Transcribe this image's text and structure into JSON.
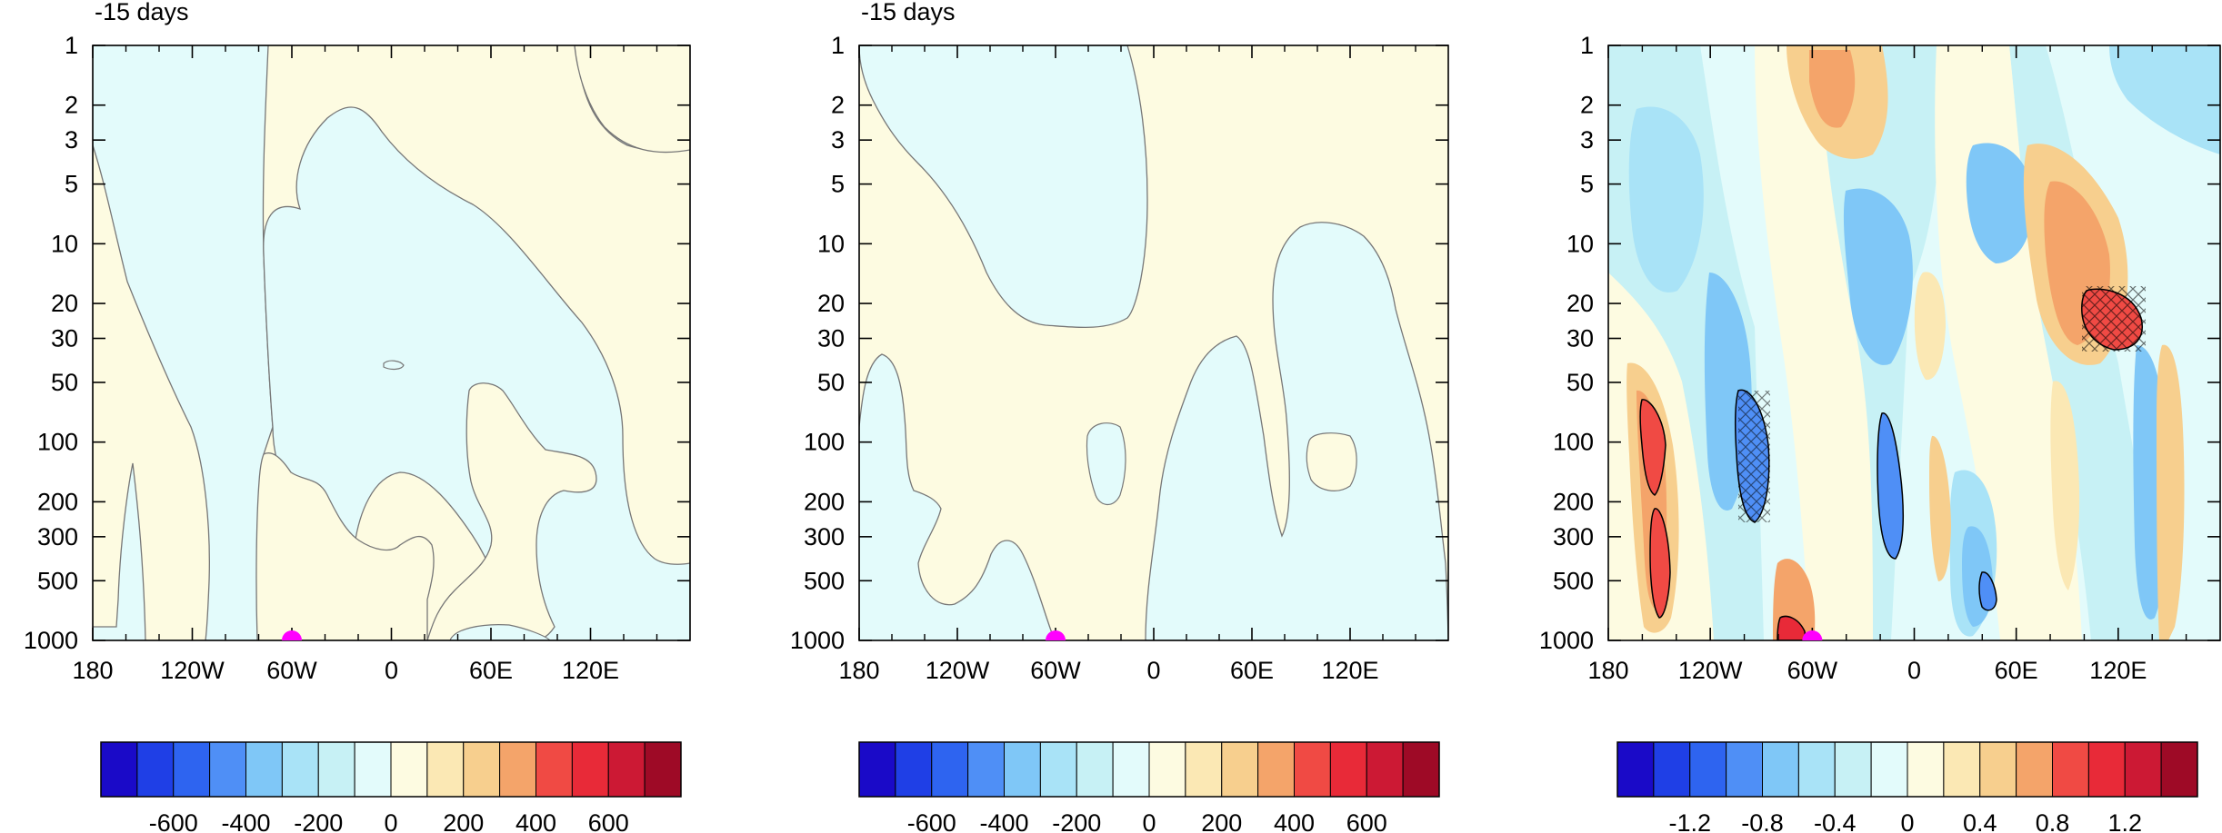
{
  "chart_data": [
    {
      "type": "heatmap",
      "panel": "left",
      "title": "-15 days",
      "x_ticks": [
        "180",
        "120W",
        "60W",
        "0",
        "60E",
        "120E"
      ],
      "y_ticks": [
        "1",
        "2",
        "3",
        "5",
        "10",
        "20",
        "30",
        "50",
        "100",
        "200",
        "300",
        "500",
        "1000"
      ],
      "ylim": [
        1000,
        1
      ],
      "y_scale": "log",
      "colorbar": {
        "labels": [
          "-600",
          "-400",
          "-200",
          "0",
          "200",
          "400",
          "600"
        ],
        "colors": [
          "#1a0ac8",
          "#1f3fe6",
          "#2e64f0",
          "#4f8ff6",
          "#7fc7f7",
          "#a9e3f7",
          "#c7f1f5",
          "#e3fbfb",
          "#fdfbe1",
          "#fbe8b4",
          "#f7cf8e",
          "#f4a46a",
          "#f04a44",
          "#e82a38",
          "#cc1934",
          "#9e0a26"
        ]
      },
      "marker": {
        "lon": "60W",
        "color": "#ff00ff"
      }
    },
    {
      "type": "heatmap",
      "panel": "middle",
      "title": "-15 days",
      "x_ticks": [
        "180",
        "120W",
        "60W",
        "0",
        "60E",
        "120E"
      ],
      "y_ticks": [
        "1",
        "2",
        "3",
        "5",
        "10",
        "20",
        "30",
        "50",
        "100",
        "200",
        "300",
        "500",
        "1000"
      ],
      "ylim": [
        1000,
        1
      ],
      "y_scale": "log",
      "colorbar": {
        "labels": [
          "-600",
          "-400",
          "-200",
          "0",
          "200",
          "400",
          "600"
        ],
        "colors": [
          "#1a0ac8",
          "#1f3fe6",
          "#2e64f0",
          "#4f8ff6",
          "#7fc7f7",
          "#a9e3f7",
          "#c7f1f5",
          "#e3fbfb",
          "#fdfbe1",
          "#fbe8b4",
          "#f7cf8e",
          "#f4a46a",
          "#f04a44",
          "#e82a38",
          "#cc1934",
          "#9e0a26"
        ]
      },
      "marker": {
        "lon": "60W",
        "color": "#ff00ff"
      }
    },
    {
      "type": "heatmap",
      "panel": "right",
      "title": "",
      "x_ticks": [
        "180",
        "120W",
        "60W",
        "0",
        "60E",
        "120E"
      ],
      "y_ticks": [
        "1",
        "2",
        "3",
        "5",
        "10",
        "20",
        "30",
        "50",
        "100",
        "200",
        "300",
        "500",
        "1000"
      ],
      "ylim": [
        1000,
        1
      ],
      "y_scale": "log",
      "colorbar": {
        "labels": [
          "-1.2",
          "-0.8",
          "-0.4",
          "0",
          "0.4",
          "0.8",
          "1.2"
        ],
        "colors": [
          "#1a0ac8",
          "#1f3fe6",
          "#2e64f0",
          "#4f8ff6",
          "#7fc7f7",
          "#a9e3f7",
          "#c7f1f5",
          "#e3fbfb",
          "#fdfbe1",
          "#fbe8b4",
          "#f7cf8e",
          "#f4a46a",
          "#f04a44",
          "#e82a38",
          "#cc1934",
          "#9e0a26"
        ]
      },
      "marker": {
        "lon": "60W",
        "color": "#ff00ff"
      }
    }
  ]
}
